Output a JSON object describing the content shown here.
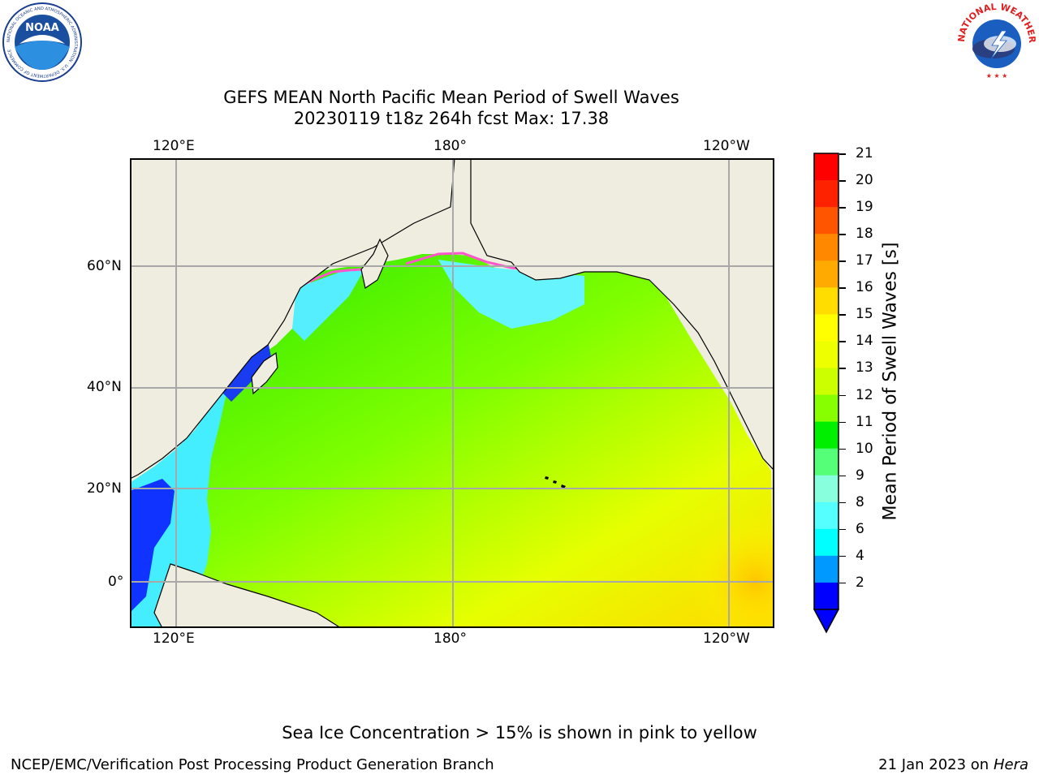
{
  "title": {
    "line1": "GEFS MEAN North Pacific Mean Period of Swell Waves",
    "line2": "20230119 t18z 264h fcst   Max: 17.38"
  },
  "map": {
    "top_lon_labels": [
      "120°E",
      "180°",
      "120°W"
    ],
    "bottom_lon_labels": [
      "120°E",
      "180°",
      "120°W"
    ],
    "lat_labels": [
      "60°N",
      "40°N",
      "20°N",
      "0°"
    ]
  },
  "colorbar": {
    "label": "Mean Period of Swell Waves [s]",
    "ticks": [
      "21",
      "20",
      "19",
      "18",
      "17",
      "16",
      "15",
      "14",
      "13",
      "12",
      "11",
      "10",
      "9",
      "8",
      "6",
      "4",
      "2"
    ],
    "colors": [
      "#ff0000",
      "#ff2200",
      "#ff5500",
      "#ff8800",
      "#ffaa00",
      "#ffdd00",
      "#ffff00",
      "#eeff00",
      "#ccff00",
      "#88ff00",
      "#00ee00",
      "#55ff77",
      "#88ffdd",
      "#55ffff",
      "#00ffff",
      "#0099ff",
      "#0000ff"
    ]
  },
  "note": "Sea Ice Concentration > 15% is shown in pink to yellow",
  "footer": {
    "left": "NCEP/EMC/Verification Post Processing Product Generation Branch",
    "right_date": "21 Jan 2023 on ",
    "right_host": "Hera"
  },
  "logos": {
    "noaa_text": "NOAA",
    "noaa_ring": "NATIONAL OCEANIC AND ATMOSPHERIC ADMINISTRATION · U.S. DEPARTMENT OF COMMERCE",
    "nws_ring": "NATIONAL WEATHER SERVICE"
  }
}
